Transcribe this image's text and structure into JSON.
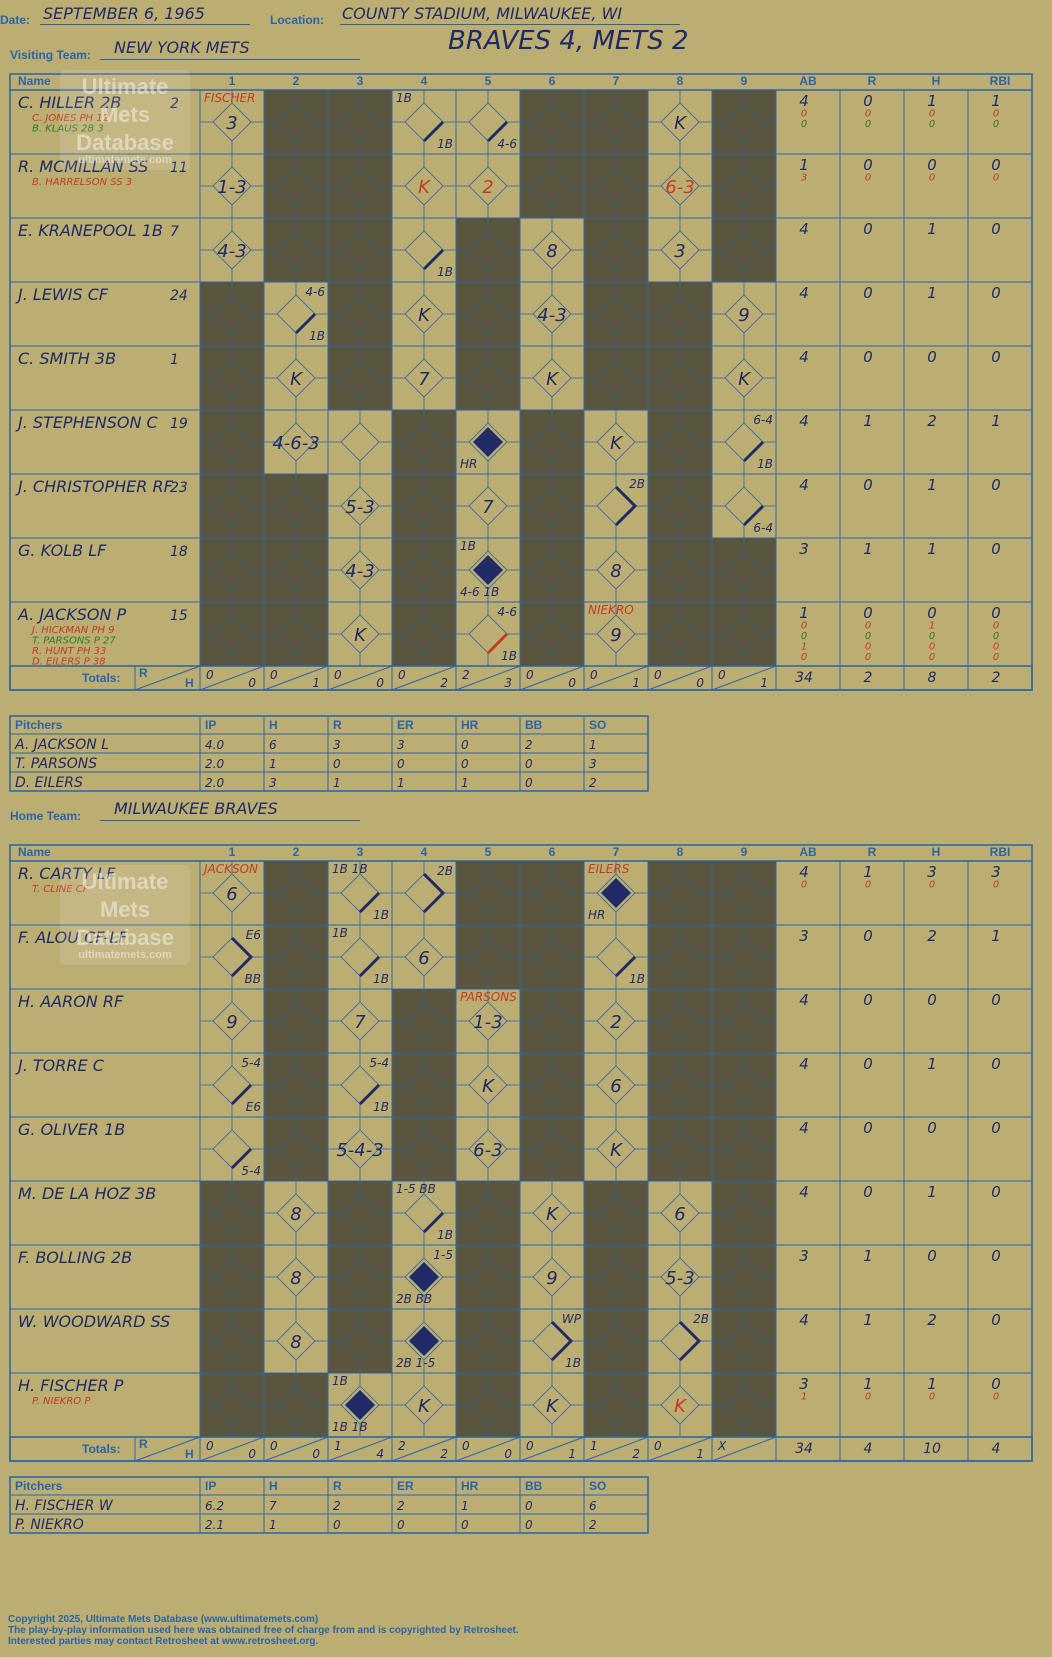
{
  "header": {
    "date_label": "Date:",
    "date": "SEPTEMBER 6, 1965",
    "location_label": "Location:",
    "location": "COUNTY STADIUM, MILWAUKEE, WI",
    "visiting_label": "Visiting Team:",
    "visiting_team": "NEW YORK METS",
    "home_label": "Home Team:",
    "home_team": "MILWAUKEE BRAVES",
    "result": "BRAVES 4, METS 2"
  },
  "grid_headers": {
    "name": "Name",
    "innings": [
      "1",
      "2",
      "3",
      "4",
      "5",
      "6",
      "7",
      "8",
      "9"
    ],
    "stats": [
      "AB",
      "R",
      "H",
      "RBI"
    ],
    "totals_label": "Totals:",
    "r": "R",
    "h": "H"
  },
  "pitch_headers": [
    "Pitchers",
    "IP",
    "H",
    "R",
    "ER",
    "HR",
    "BB",
    "SO"
  ],
  "watermark": {
    "line1": "Ultimate",
    "line2": "Mets",
    "line3": "Database",
    "url": "ultimatemets.com"
  },
  "visitors": {
    "rows": [
      {
        "name": "C. HILLER 2B",
        "num": "2",
        "subs": [
          {
            "t": "C. JONES PH  12",
            "c": "red"
          },
          {
            "t": "B. KLAUS 2B  3",
            "c": "green"
          }
        ],
        "stats": [
          [
            "4",
            "0",
            "0"
          ],
          [
            "0",
            "0",
            "0"
          ],
          [
            "1",
            "0",
            "0"
          ],
          [
            "1",
            "0",
            "0"
          ]
        ],
        "dark": [
          2,
          3,
          6,
          7,
          9
        ],
        "cells": {
          "1": {
            "c": "3",
            "tl": "FISCHER"
          },
          "4": {
            "s": "1b",
            "tl": "1B",
            "br": "1B"
          },
          "5": {
            "s": "1b",
            "br": "4-6"
          },
          "8": {
            "c": "K"
          }
        }
      },
      {
        "name": "R. MCMILLAN SS",
        "num": "11",
        "subs": [
          {
            "t": "B. HARRELSON SS  3",
            "c": "red"
          }
        ],
        "stats": [
          [
            "1",
            "3"
          ],
          [
            "0",
            "0"
          ],
          [
            "0",
            "0"
          ],
          [
            "0",
            "0"
          ]
        ],
        "dark": [
          2,
          3,
          6,
          7,
          9
        ],
        "cells": {
          "1": {
            "c": "1-3"
          },
          "4": {
            "c": "K",
            "red": true
          },
          "5": {
            "c": "2",
            "red": true
          },
          "8": {
            "c": "6-3",
            "red": true
          }
        }
      },
      {
        "name": "E. KRANEPOOL 1B",
        "num": "7",
        "subs": [],
        "stats": [
          [
            "4"
          ],
          [
            "0"
          ],
          [
            "1"
          ],
          [
            "0"
          ]
        ],
        "dark": [
          2,
          3,
          5,
          7,
          9
        ],
        "cells": {
          "1": {
            "c": "4-3"
          },
          "4": {
            "s": "1b",
            "br": "1B"
          },
          "6": {
            "c": "8"
          },
          "8": {
            "c": "3"
          }
        }
      },
      {
        "name": "J. LEWIS CF",
        "num": "24",
        "subs": [],
        "stats": [
          [
            "4"
          ],
          [
            "0"
          ],
          [
            "1"
          ],
          [
            "0"
          ]
        ],
        "dark": [
          1,
          3,
          5,
          7,
          8
        ],
        "cells": {
          "2": {
            "s": "1b",
            "tr": "4-6",
            "br": "1B"
          },
          "4": {
            "c": "K"
          },
          "6": {
            "c": "4-3"
          },
          "9": {
            "c": "9"
          }
        }
      },
      {
        "name": "C. SMITH 3B",
        "num": "1",
        "subs": [],
        "stats": [
          [
            "4"
          ],
          [
            "0"
          ],
          [
            "0"
          ],
          [
            "0"
          ]
        ],
        "dark": [
          1,
          3,
          5,
          7,
          8
        ],
        "cells": {
          "2": {
            "c": "K"
          },
          "4": {
            "c": "7"
          },
          "6": {
            "c": "K"
          },
          "9": {
            "c": "K"
          }
        }
      },
      {
        "name": "J. STEPHENSON C",
        "num": "19",
        "subs": [],
        "stats": [
          [
            "4"
          ],
          [
            "1"
          ],
          [
            "2"
          ],
          [
            "1"
          ]
        ],
        "dark": [
          1,
          4,
          6,
          8
        ],
        "cells": {
          "2": {
            "c": "4-6-3"
          },
          "5": {
            "s": "hr",
            "bl": "HR"
          },
          "7": {
            "c": "K"
          },
          "9": {
            "s": "1b",
            "tr": "6-4",
            "br": "1B"
          }
        }
      },
      {
        "name": "J. CHRISTOPHER RF",
        "num": "23",
        "subs": [],
        "stats": [
          [
            "4"
          ],
          [
            "0"
          ],
          [
            "1"
          ],
          [
            "0"
          ]
        ],
        "dark": [
          1,
          2,
          4,
          6,
          8
        ],
        "cells": {
          "3": {
            "c": "5-3"
          },
          "5": {
            "c": "7"
          },
          "7": {
            "s": "2b",
            "tr": "2B"
          },
          "9": {
            "s": "1b",
            "br": "6-4"
          }
        }
      },
      {
        "name": "G. KOLB LF",
        "num": "18",
        "subs": [],
        "stats": [
          [
            "3"
          ],
          [
            "1"
          ],
          [
            "1"
          ],
          [
            "0"
          ]
        ],
        "dark": [
          1,
          2,
          4,
          6,
          8,
          9
        ],
        "cells": {
          "3": {
            "c": "4-3"
          },
          "5": {
            "s": "hr",
            "tl": "1B",
            "bl": "4-6 1B"
          },
          "7": {
            "c": "8"
          }
        }
      },
      {
        "name": "A. JACKSON P",
        "num": "15",
        "subs": [
          {
            "t": "J. HICKMAN PH  9",
            "c": "red"
          },
          {
            "t": "T. PARSONS P  27",
            "c": "green"
          },
          {
            "t": "R. HUNT PH  33",
            "c": "red"
          },
          {
            "t": "D. EILERS P  38",
            "c": "red"
          }
        ],
        "stats": [
          [
            "1",
            "0",
            "0",
            "1",
            "0"
          ],
          [
            "0",
            "0",
            "0",
            "0",
            "0"
          ],
          [
            "0",
            "1",
            "0",
            "0",
            "0"
          ],
          [
            "0",
            "0",
            "0",
            "0",
            "0"
          ]
        ],
        "dark": [
          1,
          2,
          4,
          6,
          8,
          9
        ],
        "cells": {
          "3": {
            "c": "K"
          },
          "5": {
            "s": "1bred",
            "tr": "4-6",
            "br": "1B"
          },
          "7": {
            "c": "9",
            "tl": "NIEKRO"
          }
        }
      }
    ],
    "totals": [
      [
        "0",
        "0"
      ],
      [
        "0",
        "1"
      ],
      [
        "0",
        "0"
      ],
      [
        "0",
        "2"
      ],
      [
        "2",
        "3"
      ],
      [
        "0",
        "0"
      ],
      [
        "0",
        "1"
      ],
      [
        "0",
        "0"
      ],
      [
        "0",
        "1"
      ]
    ],
    "stat_totals": [
      "34",
      "2",
      "8",
      "2"
    ],
    "pitchers": [
      {
        "name": "A. JACKSON  L",
        "ip": "4.0",
        "h": "6",
        "r": "3",
        "er": "3",
        "hr": "0",
        "bb": "2",
        "so": "1"
      },
      {
        "name": "T. PARSONS",
        "ip": "2.0",
        "h": "1",
        "r": "0",
        "er": "0",
        "hr": "0",
        "bb": "0",
        "so": "3"
      },
      {
        "name": "D. EILERS",
        "ip": "2.0",
        "h": "3",
        "r": "1",
        "er": "1",
        "hr": "1",
        "bb": "0",
        "so": "2"
      }
    ]
  },
  "home": {
    "rows": [
      {
        "name": "R. CARTY LF",
        "num": "",
        "subs": [
          {
            "t": "T. CLINE CF",
            "c": "red"
          }
        ],
        "stats": [
          [
            "4",
            "0"
          ],
          [
            "1",
            "0"
          ],
          [
            "3",
            "0"
          ],
          [
            "3",
            "0"
          ]
        ],
        "dark": [
          2,
          5,
          6,
          8,
          9
        ],
        "cells": {
          "1": {
            "c": "6",
            "tl": "JACKSON"
          },
          "3": {
            "s": "1b",
            "tl": "1B 1B",
            "br": "1B"
          },
          "4": {
            "s": "2b",
            "tr": "2B"
          },
          "7": {
            "s": "hr",
            "tl": "EILERS",
            "bl": "HR"
          }
        }
      },
      {
        "name": "F. ALOU CF-LF",
        "num": "",
        "subs": [],
        "stats": [
          [
            "3"
          ],
          [
            "0"
          ],
          [
            "2"
          ],
          [
            "1"
          ]
        ],
        "dark": [
          2,
          5,
          6,
          8,
          9
        ],
        "cells": {
          "1": {
            "s": "2b",
            "tr": "E6",
            "br": "BB"
          },
          "3": {
            "s": "1b",
            "tl": "1B",
            "br": "1B"
          },
          "4": {
            "c": "6"
          },
          "7": {
            "s": "1b",
            "br": "1B"
          }
        }
      },
      {
        "name": "H. AARON RF",
        "num": "",
        "subs": [],
        "stats": [
          [
            "4"
          ],
          [
            "0"
          ],
          [
            "0"
          ],
          [
            "0"
          ]
        ],
        "dark": [
          2,
          4,
          6,
          8,
          9
        ],
        "cells": {
          "1": {
            "c": "9"
          },
          "3": {
            "c": "7"
          },
          "5": {
            "c": "1-3",
            "tl": "PARSONS"
          },
          "7": {
            "c": "2"
          }
        }
      },
      {
        "name": "J. TORRE C",
        "num": "",
        "subs": [],
        "stats": [
          [
            "4"
          ],
          [
            "0"
          ],
          [
            "1"
          ],
          [
            "0"
          ]
        ],
        "dark": [
          2,
          4,
          6,
          8,
          9
        ],
        "cells": {
          "1": {
            "s": "1b",
            "tr": "5-4",
            "br": "E6"
          },
          "3": {
            "s": "1b",
            "tr": "5-4",
            "br": "1B"
          },
          "5": {
            "c": "K"
          },
          "7": {
            "c": "6"
          }
        }
      },
      {
        "name": "G. OLIVER 1B",
        "num": "",
        "subs": [],
        "stats": [
          [
            "4"
          ],
          [
            "0"
          ],
          [
            "0"
          ],
          [
            "0"
          ]
        ],
        "dark": [
          2,
          4,
          6,
          8,
          9
        ],
        "cells": {
          "1": {
            "s": "1b",
            "br": "5-4"
          },
          "3": {
            "c": "5-4-3"
          },
          "5": {
            "c": "6-3"
          },
          "7": {
            "c": "K"
          }
        }
      },
      {
        "name": "M. DE LA HOZ 3B",
        "num": "",
        "subs": [],
        "stats": [
          [
            "4"
          ],
          [
            "0"
          ],
          [
            "1"
          ],
          [
            "0"
          ]
        ],
        "dark": [
          1,
          3,
          5,
          7,
          9
        ],
        "cells": {
          "2": {
            "c": "8"
          },
          "4": {
            "s": "1b",
            "tl": "1-5 BB",
            "br": "1B"
          },
          "6": {
            "c": "K"
          },
          "8": {
            "c": "6"
          }
        }
      },
      {
        "name": "F. BOLLING 2B",
        "num": "",
        "subs": [],
        "stats": [
          [
            "3"
          ],
          [
            "1"
          ],
          [
            "0"
          ],
          [
            "0"
          ]
        ],
        "dark": [
          1,
          3,
          5,
          7,
          9
        ],
        "cells": {
          "2": {
            "c": "8"
          },
          "4": {
            "s": "hr",
            "tr": "1-5",
            "bl": "2B BB"
          },
          "6": {
            "c": "9"
          },
          "8": {
            "c": "5-3"
          }
        }
      },
      {
        "name": "W. WOODWARD SS",
        "num": "",
        "subs": [],
        "stats": [
          [
            "4"
          ],
          [
            "1"
          ],
          [
            "2"
          ],
          [
            "0"
          ]
        ],
        "dark": [
          1,
          3,
          5,
          7,
          9
        ],
        "cells": {
          "2": {
            "c": "8"
          },
          "4": {
            "s": "hr",
            "bl": "2B 1-5"
          },
          "6": {
            "s": "2b",
            "tr": "WP",
            "br": "1B"
          },
          "8": {
            "s": "2b",
            "tr": "2B"
          }
        }
      },
      {
        "name": "H. FISCHER P",
        "num": "",
        "subs": [
          {
            "t": "P. NIEKRO P",
            "c": "red"
          }
        ],
        "stats": [
          [
            "3",
            "1"
          ],
          [
            "1",
            "0"
          ],
          [
            "1",
            "0"
          ],
          [
            "0",
            "0"
          ]
        ],
        "dark": [
          1,
          2,
          5,
          7,
          9
        ],
        "cells": {
          "3": {
            "s": "hr",
            "tl": "1B",
            "bl": "1B 1B"
          },
          "4": {
            "c": "K"
          },
          "6": {
            "c": "K"
          },
          "8": {
            "c": "K",
            "red": true
          }
        }
      }
    ],
    "totals": [
      [
        "0",
        "0"
      ],
      [
        "0",
        "0"
      ],
      [
        "1",
        "4"
      ],
      [
        "2",
        "2"
      ],
      [
        "0",
        "0"
      ],
      [
        "0",
        "1"
      ],
      [
        "1",
        "2"
      ],
      [
        "0",
        "1"
      ],
      [
        "X",
        ""
      ]
    ],
    "stat_totals": [
      "34",
      "4",
      "10",
      "4"
    ],
    "pitchers": [
      {
        "name": "H. FISCHER  W",
        "ip": "6.2",
        "h": "7",
        "r": "2",
        "er": "2",
        "hr": "1",
        "bb": "0",
        "so": "6"
      },
      {
        "name": "P. NIEKRO",
        "ip": "2.1",
        "h": "1",
        "r": "0",
        "er": "0",
        "hr": "0",
        "bb": "0",
        "so": "2"
      }
    ]
  },
  "footer": [
    "Copyright 2025, Ultimate Mets Database (www.ultimatemets.com)",
    "The play-by-play information used here was obtained free of charge from and is copyrighted by Retrosheet.",
    "Interested parties may contact Retrosheet at www.retrosheet.org."
  ],
  "colors": {
    "background": "#bcae72",
    "grid": "#2a64a8",
    "dark_cell": "#59553f",
    "ink": "#1f2a66",
    "red_ink": "#c43a25",
    "green_ink": "#2f7a2a"
  }
}
